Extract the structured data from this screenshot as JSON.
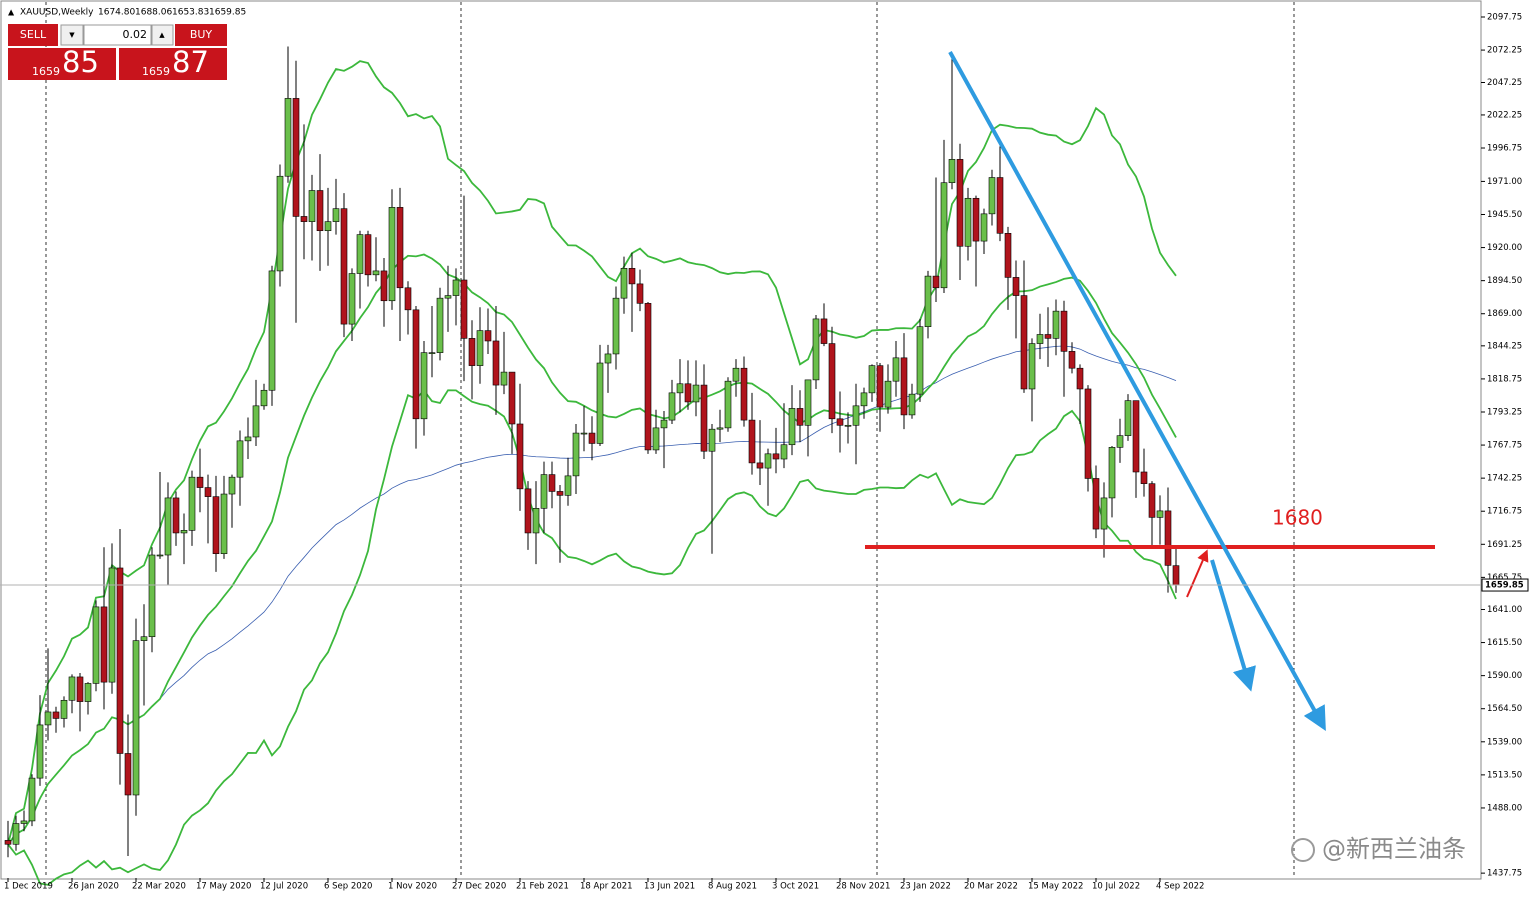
{
  "chart_data": {
    "type": "candlestick",
    "symbol": "XAUUSD,Weekly",
    "header_values": [
      "1674.80",
      "1688.06",
      "1653.83",
      "1659.85"
    ],
    "categories": [
      "1 Dec 2019",
      null,
      null,
      null,
      null,
      null,
      null,
      null,
      "26 Jan 2020",
      null,
      null,
      null,
      null,
      null,
      null,
      null,
      "22 Mar 2020",
      null,
      null,
      null,
      null,
      null,
      null,
      null,
      "17 May 2020",
      null,
      null,
      null,
      null,
      null,
      null,
      null,
      "12 Jul 2020",
      null,
      null,
      null,
      null,
      null,
      null,
      null,
      "6 Sep 2020",
      null,
      null,
      null,
      null,
      null,
      null,
      null,
      "1 Nov 2020",
      null,
      null,
      null,
      null,
      null,
      null,
      null,
      "27 Dec 2020",
      null,
      null,
      null,
      null,
      null,
      null,
      null,
      "21 Feb 2021",
      null,
      null,
      null,
      null,
      null,
      null,
      null,
      "18 Apr 2021",
      null,
      null,
      null,
      null,
      null,
      null,
      null,
      "13 Jun 2021",
      null,
      null,
      null,
      null,
      null,
      null,
      null,
      "8 Aug 2021",
      null,
      null,
      null,
      null,
      null,
      null,
      null,
      "3 Oct 2021",
      null,
      null,
      null,
      null,
      null,
      null,
      null,
      "28 Nov 2021",
      null,
      null,
      null,
      null,
      null,
      null,
      null,
      "23 Jan 2022",
      null,
      null,
      null,
      null,
      null,
      null,
      null,
      "20 Mar 2022",
      null,
      null,
      null,
      null,
      null,
      null,
      null,
      "15 May 2022",
      null,
      null,
      null,
      null,
      null,
      null,
      null,
      "10 Jul 2022",
      null,
      null,
      null,
      null,
      null,
      null,
      null,
      "4 Sep 2022",
      null,
      null
    ],
    "ohlc": [
      [
        1463,
        1478,
        1450,
        1460
      ],
      [
        1460,
        1482,
        1455,
        1476
      ],
      [
        1476,
        1486,
        1470,
        1478
      ],
      [
        1478,
        1514,
        1474,
        1511
      ],
      [
        1511,
        1575,
        1505,
        1552
      ],
      [
        1552,
        1611,
        1540,
        1562
      ],
      [
        1562,
        1566,
        1546,
        1557
      ],
      [
        1557,
        1574,
        1550,
        1571
      ],
      [
        1571,
        1591,
        1561,
        1589
      ],
      [
        1589,
        1592,
        1547,
        1570
      ],
      [
        1570,
        1585,
        1560,
        1584
      ],
      [
        1584,
        1648,
        1578,
        1643
      ],
      [
        1643,
        1689,
        1564,
        1585
      ],
      [
        1585,
        1692,
        1576,
        1673
      ],
      [
        1673,
        1703,
        1506,
        1530
      ],
      [
        1530,
        1560,
        1451,
        1498
      ],
      [
        1498,
        1634,
        1482,
        1617
      ],
      [
        1617,
        1645,
        1567,
        1620
      ],
      [
        1620,
        1689,
        1608,
        1683
      ],
      [
        1683,
        1747,
        1680,
        1683
      ],
      [
        1683,
        1739,
        1660,
        1727
      ],
      [
        1727,
        1732,
        1690,
        1700
      ],
      [
        1700,
        1715,
        1676,
        1702
      ],
      [
        1702,
        1748,
        1690,
        1743
      ],
      [
        1743,
        1765,
        1716,
        1735
      ],
      [
        1735,
        1745,
        1692,
        1728
      ],
      [
        1728,
        1744,
        1670,
        1684
      ],
      [
        1684,
        1744,
        1680,
        1730
      ],
      [
        1730,
        1745,
        1704,
        1743
      ],
      [
        1743,
        1779,
        1721,
        1771
      ],
      [
        1771,
        1789,
        1757,
        1774
      ],
      [
        1774,
        1818,
        1767,
        1798
      ],
      [
        1798,
        1815,
        1795,
        1810
      ],
      [
        1810,
        1906,
        1798,
        1902
      ],
      [
        1902,
        1984,
        1890,
        1975
      ],
      [
        1975,
        2075,
        1970,
        2035
      ],
      [
        2035,
        2064,
        1862,
        1944
      ],
      [
        1944,
        2015,
        1911,
        1940
      ],
      [
        1940,
        1976,
        1910,
        1964
      ],
      [
        1964,
        1992,
        1902,
        1933
      ],
      [
        1933,
        1966,
        1906,
        1940
      ],
      [
        1940,
        1973,
        1930,
        1950
      ],
      [
        1950,
        1962,
        1851,
        1861
      ],
      [
        1861,
        1904,
        1848,
        1900
      ],
      [
        1900,
        1933,
        1873,
        1930
      ],
      [
        1930,
        1933,
        1890,
        1899
      ],
      [
        1899,
        1928,
        1894,
        1902
      ],
      [
        1902,
        1912,
        1859,
        1879
      ],
      [
        1879,
        1965,
        1872,
        1951
      ],
      [
        1951,
        1966,
        1848,
        1889
      ],
      [
        1889,
        1894,
        1853,
        1872
      ],
      [
        1872,
        1875,
        1765,
        1788
      ],
      [
        1788,
        1848,
        1775,
        1839
      ],
      [
        1839,
        1875,
        1820,
        1839
      ],
      [
        1839,
        1889,
        1833,
        1881
      ],
      [
        1881,
        1906,
        1855,
        1883
      ],
      [
        1883,
        1904,
        1860,
        1895
      ],
      [
        1895,
        1960,
        1817,
        1850
      ],
      [
        1850,
        1864,
        1803,
        1829
      ],
      [
        1829,
        1874,
        1815,
        1856
      ],
      [
        1856,
        1873,
        1838,
        1848
      ],
      [
        1848,
        1875,
        1791,
        1814
      ],
      [
        1814,
        1855,
        1807,
        1824
      ],
      [
        1824,
        1824,
        1761,
        1784
      ],
      [
        1784,
        1815,
        1717,
        1734
      ],
      [
        1734,
        1740,
        1687,
        1700
      ],
      [
        1700,
        1740,
        1676,
        1719
      ],
      [
        1719,
        1755,
        1700,
        1745
      ],
      [
        1745,
        1755,
        1719,
        1732
      ],
      [
        1732,
        1737,
        1677,
        1729
      ],
      [
        1729,
        1758,
        1721,
        1744
      ],
      [
        1744,
        1784,
        1730,
        1777
      ],
      [
        1777,
        1798,
        1763,
        1777
      ],
      [
        1777,
        1790,
        1756,
        1769
      ],
      [
        1769,
        1845,
        1767,
        1831
      ],
      [
        1831,
        1845,
        1808,
        1838
      ],
      [
        1838,
        1890,
        1826,
        1881
      ],
      [
        1881,
        1913,
        1869,
        1904
      ],
      [
        1904,
        1916,
        1855,
        1892
      ],
      [
        1892,
        1903,
        1871,
        1877
      ],
      [
        1877,
        1878,
        1761,
        1764
      ],
      [
        1764,
        1795,
        1761,
        1781
      ],
      [
        1781,
        1794,
        1750,
        1787
      ],
      [
        1787,
        1818,
        1784,
        1808
      ],
      [
        1808,
        1834,
        1793,
        1815
      ],
      [
        1815,
        1833,
        1795,
        1801
      ],
      [
        1801,
        1833,
        1790,
        1814
      ],
      [
        1814,
        1830,
        1757,
        1763
      ],
      [
        1763,
        1784,
        1684,
        1780
      ],
      [
        1780,
        1795,
        1770,
        1781
      ],
      [
        1781,
        1820,
        1778,
        1817
      ],
      [
        1817,
        1834,
        1805,
        1827
      ],
      [
        1827,
        1836,
        1782,
        1787
      ],
      [
        1787,
        1808,
        1745,
        1754
      ],
      [
        1754,
        1787,
        1737,
        1750
      ],
      [
        1750,
        1765,
        1721,
        1761
      ],
      [
        1761,
        1781,
        1746,
        1757
      ],
      [
        1757,
        1800,
        1750,
        1768
      ],
      [
        1768,
        1814,
        1760,
        1796
      ],
      [
        1796,
        1810,
        1770,
        1783
      ],
      [
        1783,
        1818,
        1759,
        1818
      ],
      [
        1818,
        1868,
        1811,
        1865
      ],
      [
        1865,
        1877,
        1844,
        1846
      ],
      [
        1846,
        1859,
        1777,
        1788
      ],
      [
        1788,
        1809,
        1762,
        1783
      ],
      [
        1783,
        1793,
        1769,
        1783
      ],
      [
        1783,
        1815,
        1753,
        1798
      ],
      [
        1798,
        1812,
        1788,
        1808
      ],
      [
        1808,
        1830,
        1801,
        1829
      ],
      [
        1829,
        1831,
        1778,
        1797
      ],
      [
        1797,
        1830,
        1792,
        1817
      ],
      [
        1817,
        1848,
        1805,
        1835
      ],
      [
        1835,
        1854,
        1780,
        1791
      ],
      [
        1791,
        1815,
        1788,
        1807
      ],
      [
        1807,
        1865,
        1801,
        1859
      ],
      [
        1859,
        1902,
        1850,
        1898
      ],
      [
        1898,
        1974,
        1878,
        1889
      ],
      [
        1889,
        2003,
        1885,
        1970
      ],
      [
        1970,
        2070,
        1965,
        1988
      ],
      [
        1988,
        2000,
        1895,
        1921
      ],
      [
        1921,
        1966,
        1910,
        1958
      ],
      [
        1958,
        1960,
        1890,
        1925
      ],
      [
        1925,
        1950,
        1915,
        1946
      ],
      [
        1946,
        1980,
        1937,
        1974
      ],
      [
        1974,
        1998,
        1925,
        1931
      ],
      [
        1931,
        1936,
        1872,
        1897
      ],
      [
        1897,
        1910,
        1850,
        1883
      ],
      [
        1883,
        1910,
        1808,
        1811
      ],
      [
        1811,
        1850,
        1786,
        1846
      ],
      [
        1846,
        1869,
        1834,
        1853
      ],
      [
        1853,
        1874,
        1828,
        1850
      ],
      [
        1850,
        1880,
        1837,
        1871
      ],
      [
        1871,
        1879,
        1805,
        1840
      ],
      [
        1840,
        1847,
        1823,
        1827
      ],
      [
        1827,
        1830,
        1784,
        1811
      ],
      [
        1811,
        1814,
        1732,
        1742
      ],
      [
        1742,
        1752,
        1696,
        1703
      ],
      [
        1703,
        1739,
        1681,
        1727
      ],
      [
        1727,
        1767,
        1712,
        1766
      ],
      [
        1766,
        1788,
        1754,
        1775
      ],
      [
        1775,
        1807,
        1771,
        1802
      ],
      [
        1802,
        1802,
        1727,
        1747
      ],
      [
        1747,
        1765,
        1728,
        1738
      ],
      [
        1738,
        1740,
        1688,
        1712
      ],
      [
        1712,
        1729,
        1691,
        1717
      ],
      [
        1717,
        1735,
        1654,
        1675
      ],
      [
        1674.8,
        1688.06,
        1653.83,
        1659.85
      ]
    ],
    "up_color": "#6abf4b",
    "down_color": "#b0141c",
    "ylim": [
      1434,
      2107
    ],
    "yticks": [
      2097.75,
      2072.25,
      2047.25,
      2022.25,
      1996.75,
      {
        "value": 1971,
        "label": "1971.00"
      },
      {
        "value": 1945.5,
        "label": "1945.50"
      },
      {
        "value": 1920,
        "label": "1920.00"
      },
      {
        "value": 1894.5,
        "label": "1894.50"
      },
      {
        "value": 1869,
        "label": "1869.00"
      },
      1844.25,
      1818.75,
      1793.25,
      1767.75,
      1742.25,
      1716.75,
      1691.25,
      1665.75,
      {
        "value": 1641,
        "label": "1641.00"
      },
      {
        "value": 1615.5,
        "label": "1615.50"
      },
      {
        "value": 1590,
        "label": "1590.00"
      },
      {
        "value": 1564.5,
        "label": "1564.50"
      },
      {
        "value": 1539,
        "label": "1539.00"
      },
      {
        "value": 1513.5,
        "label": "1513.50"
      },
      {
        "value": 1488,
        "label": "1488.00"
      },
      1437.75
    ],
    "grid": false,
    "annotation": "1680"
  },
  "trade_panel": {
    "sell": "SELL",
    "buy": "BUY",
    "lot": "0.02",
    "bid_big": "1659",
    "bid_small": "85",
    "ask_big": "1659",
    "ask_small": "87"
  },
  "watermark": "@新西兰油条"
}
